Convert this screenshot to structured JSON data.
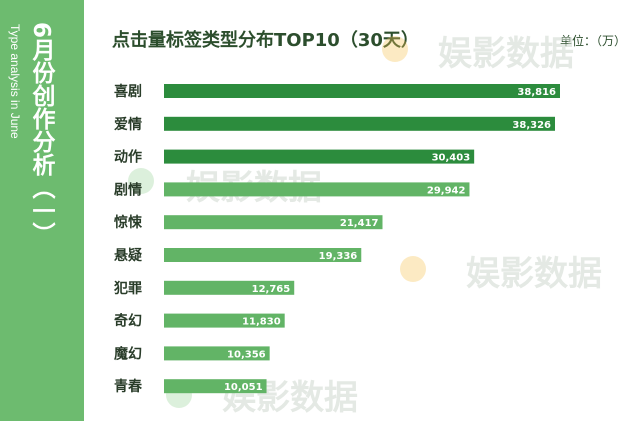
{
  "sidebar": {
    "title_cn": "6月份创作分析（一）",
    "title_en": "Type analysis in June"
  },
  "watermark": "娱影数据",
  "chart_data": {
    "type": "bar",
    "orientation": "horizontal",
    "title": "点击量标签类型分布TOP10（30天）",
    "unit": "单位：（万）",
    "categories": [
      "喜剧",
      "爱情",
      "动作",
      "剧情",
      "惊悚",
      "悬疑",
      "犯罪",
      "奇幻",
      "魔幻",
      "青春"
    ],
    "values": [
      38816,
      38326,
      30403,
      29942,
      21417,
      19336,
      12765,
      11830,
      10356,
      10051
    ],
    "value_labels": [
      "38,816",
      "38,326",
      "30,403",
      "29,942",
      "21,417",
      "19,336",
      "12,765",
      "11,830",
      "10,356",
      "10,051"
    ],
    "colors": {
      "dark": "#2c8c3d",
      "light": "#62b466",
      "sidebar": "#6dbb6f"
    },
    "dark_bar_count": 3,
    "xlim": [
      0,
      38816
    ],
    "grid": false,
    "legend": "none"
  }
}
